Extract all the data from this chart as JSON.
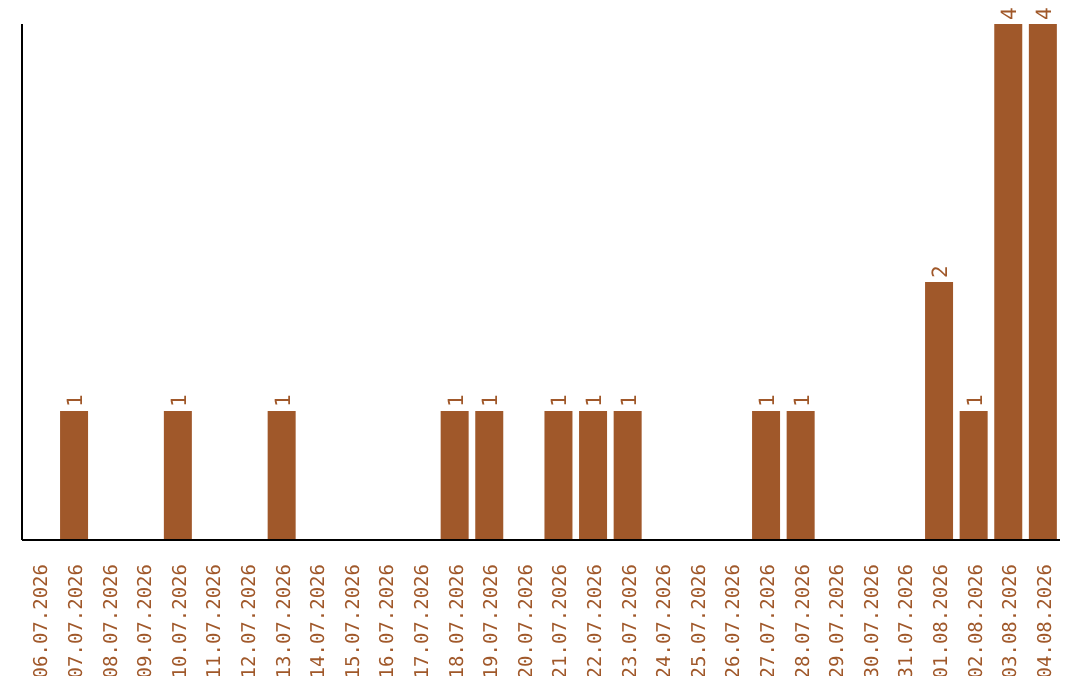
{
  "chart_data": {
    "type": "bar",
    "categories": [
      "06.07.2026",
      "07.07.2026",
      "08.07.2026",
      "09.07.2026",
      "10.07.2026",
      "11.07.2026",
      "12.07.2026",
      "13.07.2026",
      "14.07.2026",
      "15.07.2026",
      "16.07.2026",
      "17.07.2026",
      "18.07.2026",
      "19.07.2026",
      "20.07.2026",
      "21.07.2026",
      "22.07.2026",
      "23.07.2026",
      "24.07.2026",
      "25.07.2026",
      "26.07.2026",
      "27.07.2026",
      "28.07.2026",
      "29.07.2026",
      "30.07.2026",
      "31.07.2026",
      "01.08.2026",
      "02.08.2026",
      "03.08.2026",
      "04.08.2026"
    ],
    "values": [
      null,
      1,
      null,
      null,
      1,
      null,
      null,
      1,
      null,
      null,
      null,
      null,
      1,
      1,
      null,
      1,
      1,
      1,
      null,
      null,
      null,
      1,
      1,
      null,
      null,
      null,
      2,
      1,
      4,
      4
    ],
    "color": "#a0582a",
    "ylim": [
      0,
      4
    ],
    "tick_labels": "x",
    "data_labels": true
  }
}
